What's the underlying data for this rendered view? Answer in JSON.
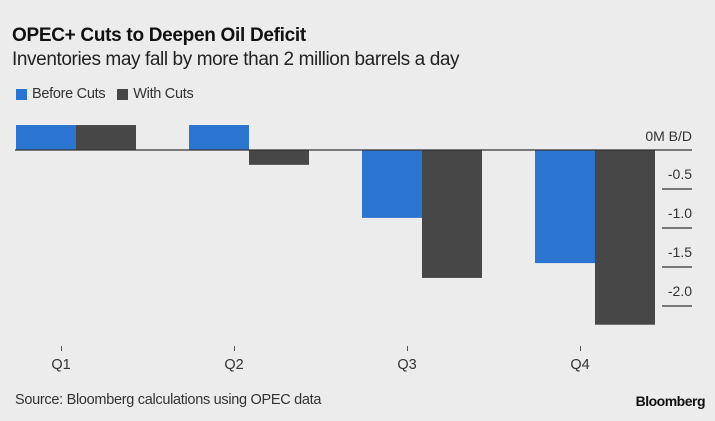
{
  "chart_data": {
    "type": "bar",
    "title": "OPEC+ Cuts to Deepen Oil Deficit",
    "subtitle": "Inventories may fall by more than 2 million barrels a day",
    "categories": [
      "Q1",
      "Q2",
      "Q3",
      "Q4"
    ],
    "series": [
      {
        "name": "Before Cuts",
        "color": "#2b74cf",
        "values": [
          0.32,
          0.32,
          -0.87,
          -1.45
        ]
      },
      {
        "name": "With Cuts",
        "color": "#474747",
        "values": [
          0.32,
          -0.19,
          -1.64,
          -2.24
        ]
      }
    ],
    "yaxis": {
      "zero_label": "0M B/D",
      "ticks": [
        {
          "value": -0.5,
          "label": "-0.5"
        },
        {
          "value": -1.0,
          "label": "-1.0"
        },
        {
          "value": -1.5,
          "label": "-1.5"
        },
        {
          "value": -2.0,
          "label": "-2.0"
        }
      ],
      "position": "right"
    },
    "ylim": [
      -2.3,
      0.35
    ],
    "xlabel": "",
    "ylabel": "M B/D",
    "legend": "top-left",
    "grid": false
  },
  "footer": {
    "source": "Source: Bloomberg calculations using OPEC data",
    "brand": "Bloomberg"
  }
}
